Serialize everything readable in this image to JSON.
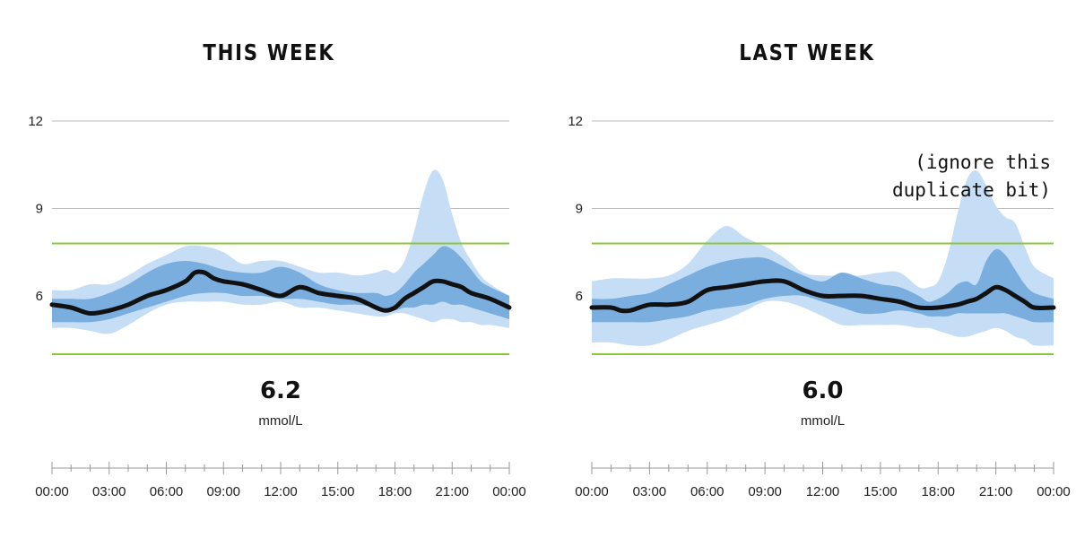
{
  "colors": {
    "outer_band": "#c5def5",
    "inner_band": "#7aaede",
    "median_line": "#111111",
    "target_line": "#8cc63f",
    "grid": "#bbbbbb",
    "axis": "#999999"
  },
  "chart_data": [
    {
      "type": "area",
      "title": "THIS WEEK",
      "xlabel": "",
      "ylabel": "",
      "x_ticks": [
        "00:00",
        "03:00",
        "06:00",
        "09:00",
        "12:00",
        "15:00",
        "18:00",
        "21:00",
        "00:00"
      ],
      "y_ticks": [
        6,
        9,
        12
      ],
      "ylim": [
        2,
        13
      ],
      "xlim_hours": [
        0,
        24
      ],
      "target_range": [
        4.0,
        7.8
      ],
      "average": "6.2",
      "unit": "mmol/L",
      "series": [
        {
          "role": "percentile_10_90",
          "x": [
            0,
            1,
            2,
            3,
            4,
            5,
            6,
            7,
            8,
            9,
            10,
            11,
            12,
            13,
            14,
            15,
            16,
            17,
            17.5,
            18,
            18.5,
            19,
            19.5,
            20,
            20.5,
            21,
            21.5,
            22,
            22.5,
            23,
            24
          ],
          "low": [
            4.9,
            4.9,
            4.8,
            4.7,
            5.0,
            5.4,
            5.7,
            5.8,
            5.8,
            5.8,
            5.7,
            5.7,
            5.8,
            5.6,
            5.6,
            5.5,
            5.4,
            5.3,
            5.3,
            5.4,
            5.4,
            5.3,
            5.2,
            5.1,
            5.2,
            5.2,
            5.1,
            5.1,
            5.0,
            5.0,
            4.9
          ],
          "high": [
            6.2,
            6.2,
            6.4,
            6.4,
            6.7,
            7.1,
            7.4,
            7.7,
            7.7,
            7.5,
            7.1,
            7.2,
            7.2,
            7.0,
            6.8,
            6.8,
            6.7,
            6.8,
            6.9,
            6.8,
            7.2,
            8.2,
            9.5,
            10.3,
            10.0,
            8.8,
            7.8,
            7.2,
            6.7,
            6.4,
            6.0
          ]
        },
        {
          "role": "percentile_25_75",
          "x": [
            0,
            1,
            2,
            3,
            4,
            5,
            6,
            7,
            8,
            9,
            10,
            11,
            12,
            13,
            14,
            15,
            16,
            17,
            17.5,
            18,
            18.5,
            19,
            19.5,
            20,
            20.5,
            21,
            21.5,
            22,
            22.5,
            23,
            24
          ],
          "low": [
            5.1,
            5.1,
            5.1,
            5.2,
            5.4,
            5.6,
            5.8,
            6.0,
            6.1,
            6.1,
            6.0,
            6.0,
            5.9,
            5.9,
            5.8,
            5.7,
            5.7,
            5.6,
            5.5,
            5.5,
            5.6,
            5.6,
            5.7,
            5.7,
            5.8,
            5.7,
            5.7,
            5.6,
            5.5,
            5.4,
            5.2
          ],
          "high": [
            5.9,
            5.9,
            5.9,
            6.1,
            6.4,
            6.8,
            7.1,
            7.2,
            7.1,
            6.9,
            6.8,
            6.8,
            7.0,
            6.8,
            6.4,
            6.2,
            6.1,
            6.1,
            6.0,
            6.1,
            6.4,
            6.8,
            7.1,
            7.4,
            7.7,
            7.6,
            7.3,
            6.9,
            6.5,
            6.3,
            6.0
          ]
        },
        {
          "role": "median",
          "x": [
            0,
            1,
            2,
            3,
            4,
            5,
            6,
            7,
            7.5,
            8,
            8.5,
            9,
            10,
            11,
            12,
            13,
            14,
            15,
            16,
            17,
            17.5,
            18,
            18.5,
            19,
            19.5,
            20,
            20.5,
            21,
            21.5,
            22,
            23,
            24
          ],
          "y": [
            5.7,
            5.6,
            5.4,
            5.5,
            5.7,
            6.0,
            6.2,
            6.5,
            6.8,
            6.8,
            6.6,
            6.5,
            6.4,
            6.2,
            6.0,
            6.3,
            6.1,
            6.0,
            5.9,
            5.6,
            5.5,
            5.6,
            5.9,
            6.1,
            6.3,
            6.5,
            6.5,
            6.4,
            6.3,
            6.1,
            5.9,
            5.6
          ]
        }
      ]
    },
    {
      "type": "area",
      "title": "LAST WEEK",
      "xlabel": "",
      "ylabel": "",
      "x_ticks": [
        "00:00",
        "03:00",
        "06:00",
        "09:00",
        "12:00",
        "15:00",
        "18:00",
        "21:00",
        "00:00"
      ],
      "y_ticks": [
        6,
        9,
        12
      ],
      "ylim": [
        2,
        13
      ],
      "xlim_hours": [
        0,
        24
      ],
      "target_range": [
        4.0,
        7.8
      ],
      "average": "6.0",
      "unit": "mmol/L",
      "annotation": [
        "(ignore this",
        "duplicate bit)"
      ],
      "series": [
        {
          "role": "percentile_10_90",
          "x": [
            0,
            1,
            2,
            3,
            4,
            5,
            6,
            7,
            8,
            9,
            10,
            11,
            12,
            13,
            14,
            15,
            16,
            17,
            17.5,
            18,
            18.5,
            19,
            19.5,
            20,
            20.5,
            21,
            21.5,
            22,
            22.5,
            23,
            24
          ],
          "low": [
            4.4,
            4.4,
            4.3,
            4.3,
            4.5,
            4.8,
            5.0,
            5.2,
            5.5,
            5.8,
            5.8,
            5.6,
            5.3,
            5.0,
            5.0,
            5.0,
            5.0,
            4.9,
            4.9,
            4.8,
            4.7,
            4.6,
            4.6,
            4.7,
            4.8,
            4.9,
            4.8,
            4.6,
            4.5,
            4.3,
            4.3
          ],
          "high": [
            6.5,
            6.6,
            6.6,
            6.6,
            6.7,
            7.1,
            7.9,
            8.4,
            8.0,
            7.7,
            7.3,
            6.8,
            6.7,
            6.7,
            6.7,
            6.8,
            6.8,
            6.3,
            6.3,
            6.5,
            7.4,
            8.8,
            10.0,
            10.3,
            9.8,
            9.1,
            8.7,
            8.5,
            7.7,
            7.0,
            6.6
          ]
        },
        {
          "role": "percentile_25_75",
          "x": [
            0,
            1,
            2,
            3,
            4,
            5,
            6,
            7,
            8,
            9,
            10,
            11,
            12,
            13,
            14,
            15,
            16,
            17,
            17.5,
            18,
            18.5,
            19,
            19.5,
            20,
            20.5,
            21,
            21.5,
            22,
            22.5,
            23,
            24
          ],
          "low": [
            5.1,
            5.1,
            5.1,
            5.1,
            5.2,
            5.3,
            5.5,
            5.6,
            5.7,
            5.9,
            6.0,
            6.0,
            5.8,
            5.6,
            5.4,
            5.4,
            5.5,
            5.4,
            5.3,
            5.3,
            5.3,
            5.4,
            5.4,
            5.4,
            5.4,
            5.4,
            5.4,
            5.3,
            5.2,
            5.1,
            5.1
          ],
          "high": [
            5.9,
            5.9,
            6.0,
            6.1,
            6.4,
            6.7,
            7.0,
            7.2,
            7.3,
            7.3,
            7.0,
            6.7,
            6.5,
            6.8,
            6.6,
            6.4,
            6.3,
            6.0,
            5.8,
            5.9,
            6.1,
            6.4,
            6.5,
            6.4,
            7.2,
            7.6,
            7.4,
            6.9,
            6.4,
            6.1,
            5.9
          ]
        },
        {
          "role": "median",
          "x": [
            0,
            1,
            1.5,
            2,
            3,
            4,
            5,
            6,
            7,
            8,
            9,
            10,
            11,
            12,
            13,
            14,
            15,
            16,
            17,
            18,
            19,
            19.5,
            20,
            20.5,
            21,
            21.5,
            22,
            22.5,
            23,
            24
          ],
          "y": [
            5.6,
            5.6,
            5.5,
            5.5,
            5.7,
            5.7,
            5.8,
            6.2,
            6.3,
            6.4,
            6.5,
            6.5,
            6.2,
            6.0,
            6.0,
            6.0,
            5.9,
            5.8,
            5.6,
            5.6,
            5.7,
            5.8,
            5.9,
            6.1,
            6.3,
            6.2,
            6.0,
            5.8,
            5.6,
            5.6
          ]
        }
      ]
    }
  ]
}
